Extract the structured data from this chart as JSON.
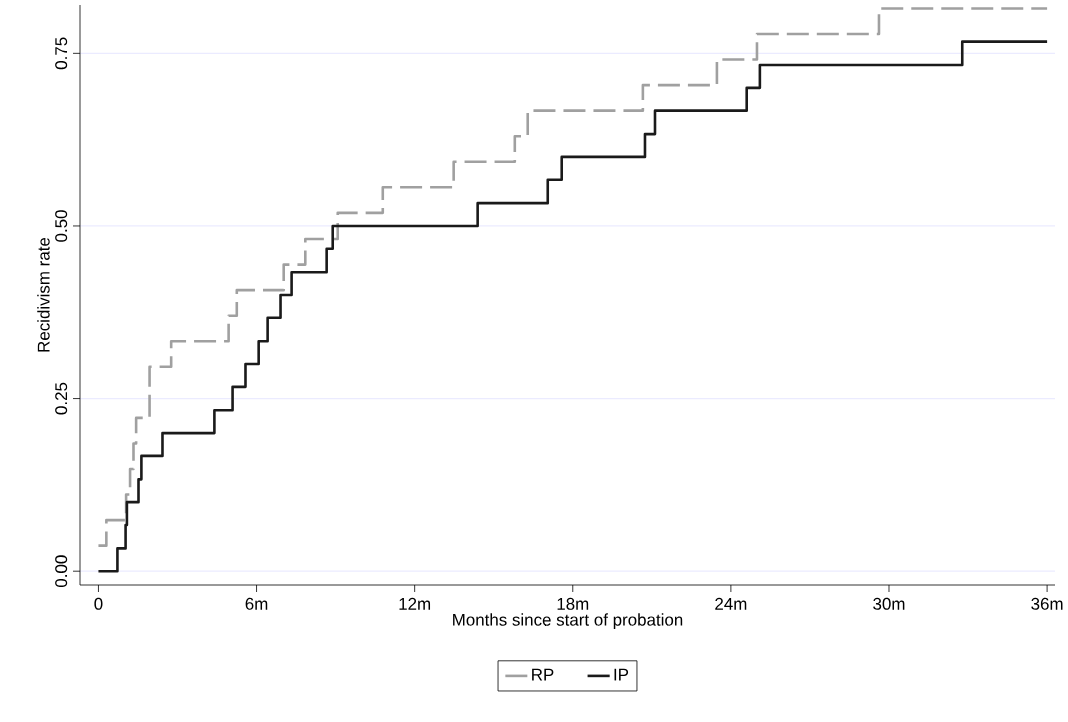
{
  "chart_data": {
    "type": "step",
    "xlabel": "Months since start of probation",
    "ylabel": "Recidivism rate",
    "xlim": [
      -0.7,
      36.3
    ],
    "ylim": [
      -0.02,
      0.82
    ],
    "xticks": [
      0,
      {
        "value": 6,
        "label": "6m"
      },
      {
        "value": 12,
        "label": "12m"
      },
      {
        "value": 18,
        "label": "18m"
      },
      {
        "value": 24,
        "label": "24m"
      },
      {
        "value": 30,
        "label": "30m"
      },
      {
        "value": 36,
        "label": "36m"
      }
    ],
    "yticks": [
      {
        "value": 0,
        "label": "0.00"
      },
      {
        "value": 0.25,
        "label": "0.25"
      },
      {
        "value": 0.5,
        "label": "0.50"
      },
      {
        "value": 0.75,
        "label": "0.75"
      }
    ],
    "grid": "y",
    "legend": "bottom",
    "series": [
      {
        "name": "RP",
        "color": "#a0a0a0",
        "line_style": "dashed",
        "x": [
          0,
          0.3,
          1.05,
          1.2,
          1.33,
          1.43,
          1.94,
          2.76,
          4.94,
          5.25,
          7.03,
          7.85,
          9.08,
          10.79,
          13.48,
          15.8,
          16.29,
          20.66,
          23.47,
          24.99,
          29.62,
          36
        ],
        "values": [
          0.037,
          0.074,
          0.111,
          0.148,
          0.185,
          0.222,
          0.296,
          0.333,
          0.37,
          0.407,
          0.444,
          0.481,
          0.519,
          0.556,
          0.593,
          0.63,
          0.667,
          0.704,
          0.741,
          0.778,
          0.815,
          0.815
        ]
      },
      {
        "name": "IP",
        "color": "#1a1a1a",
        "line_style": "solid",
        "x": [
          0,
          0.72,
          1.03,
          1.08,
          1.52,
          1.63,
          2.43,
          4.4,
          5.09,
          5.58,
          6.08,
          6.42,
          6.91,
          7.33,
          8.66,
          8.89,
          14.39,
          17.05,
          17.58,
          20.74,
          21.12,
          24.6,
          25.1,
          32.78,
          36
        ],
        "values": [
          0,
          0.033,
          0.067,
          0.1,
          0.133,
          0.167,
          0.2,
          0.233,
          0.267,
          0.3,
          0.333,
          0.367,
          0.4,
          0.433,
          0.467,
          0.5,
          0.533,
          0.567,
          0.6,
          0.633,
          0.667,
          0.7,
          0.733,
          0.767,
          0.767
        ]
      }
    ]
  }
}
